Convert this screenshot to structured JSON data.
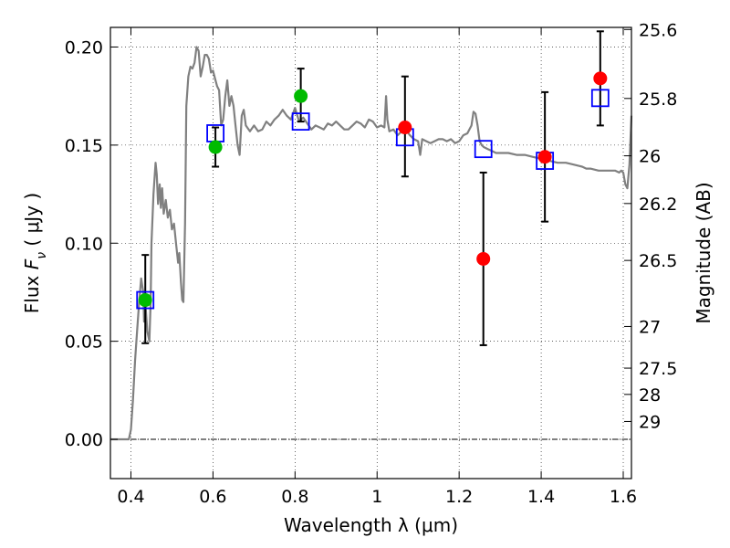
{
  "chart_data": {
    "type": "scatter",
    "xlabel": "Wavelength  λ (μm)",
    "ylabel": "Flux  F_ν  ( μJy )",
    "ylabel_parts": {
      "prefix": "Flux  ",
      "var": "F",
      "sub": "ν",
      "unit": "  ( μJy )"
    },
    "y2label": "Magnitude (AB)",
    "xlim": [
      0.35,
      1.62
    ],
    "ylim": [
      -0.02,
      0.21
    ],
    "grid": true,
    "x_ticks": [
      {
        "value": 0.4,
        "label": "0.4"
      },
      {
        "value": 0.6,
        "label": "0.6"
      },
      {
        "value": 0.8,
        "label": "0.8"
      },
      {
        "value": 1.0,
        "label": "1"
      },
      {
        "value": 1.2,
        "label": "1.2"
      },
      {
        "value": 1.4,
        "label": "1.4"
      },
      {
        "value": 1.6,
        "label": "1.6"
      }
    ],
    "y_ticks": [
      {
        "value": 0.0,
        "label": "0.00"
      },
      {
        "value": 0.05,
        "label": "0.05"
      },
      {
        "value": 0.1,
        "label": "0.10"
      },
      {
        "value": 0.15,
        "label": "0.15"
      },
      {
        "value": 0.2,
        "label": "0.20"
      }
    ],
    "mag_ticks": [
      {
        "mag": 25.6,
        "label": "25.6"
      },
      {
        "mag": 25.8,
        "label": "25.8"
      },
      {
        "mag": 26.0,
        "label": "26"
      },
      {
        "mag": 26.2,
        "label": "26.2"
      },
      {
        "mag": 26.5,
        "label": "26.5"
      },
      {
        "mag": 27.0,
        "label": "27"
      },
      {
        "mag": 27.5,
        "label": "27.5"
      },
      {
        "mag": 28.0,
        "label": "28"
      },
      {
        "mag": 29.0,
        "label": "29"
      }
    ],
    "colors": {
      "detected": "#00bb00",
      "other": "#ff0000",
      "model_box": "#0000ff",
      "spectrum": "#808080",
      "errorbar": "#000000"
    },
    "measurements": [
      {
        "x": 0.435,
        "y": 0.071,
        "yerr_low": 0.049,
        "yerr_high": 0.094,
        "color": "detected"
      },
      {
        "x": 0.606,
        "y": 0.149,
        "yerr_low": 0.139,
        "yerr_high": 0.159,
        "color": "detected"
      },
      {
        "x": 0.814,
        "y": 0.175,
        "yerr_low": 0.162,
        "yerr_high": 0.189,
        "color": "detected"
      },
      {
        "x": 1.068,
        "y": 0.159,
        "yerr_low": 0.134,
        "yerr_high": 0.185,
        "color": "other"
      },
      {
        "x": 1.259,
        "y": 0.092,
        "yerr_low": 0.048,
        "yerr_high": 0.136,
        "color": "other"
      },
      {
        "x": 1.409,
        "y": 0.144,
        "yerr_low": 0.111,
        "yerr_high": 0.177,
        "color": "other"
      },
      {
        "x": 1.544,
        "y": 0.184,
        "yerr_low": 0.16,
        "yerr_high": 0.208,
        "color": "other"
      }
    ],
    "model_photometry": [
      {
        "x": 0.435,
        "y": 0.071
      },
      {
        "x": 0.606,
        "y": 0.156
      },
      {
        "x": 0.814,
        "y": 0.162
      },
      {
        "x": 1.068,
        "y": 0.154
      },
      {
        "x": 1.259,
        "y": 0.148
      },
      {
        "x": 1.409,
        "y": 0.142
      },
      {
        "x": 1.544,
        "y": 0.174
      }
    ],
    "spectrum": [
      [
        0.35,
        0.0
      ],
      [
        0.38,
        0.0
      ],
      [
        0.395,
        0.0
      ],
      [
        0.4,
        0.005
      ],
      [
        0.405,
        0.02
      ],
      [
        0.41,
        0.04
      ],
      [
        0.415,
        0.055
      ],
      [
        0.42,
        0.07
      ],
      [
        0.425,
        0.082
      ],
      [
        0.43,
        0.075
      ],
      [
        0.432,
        0.06
      ],
      [
        0.435,
        0.07
      ],
      [
        0.44,
        0.055
      ],
      [
        0.445,
        0.05
      ],
      [
        0.448,
        0.07
      ],
      [
        0.45,
        0.1
      ],
      [
        0.455,
        0.125
      ],
      [
        0.46,
        0.141
      ],
      [
        0.463,
        0.135
      ],
      [
        0.466,
        0.12
      ],
      [
        0.47,
        0.13
      ],
      [
        0.473,
        0.118
      ],
      [
        0.476,
        0.128
      ],
      [
        0.48,
        0.115
      ],
      [
        0.485,
        0.122
      ],
      [
        0.49,
        0.113
      ],
      [
        0.495,
        0.117
      ],
      [
        0.5,
        0.107
      ],
      [
        0.505,
        0.11
      ],
      [
        0.51,
        0.1
      ],
      [
        0.515,
        0.09
      ],
      [
        0.518,
        0.095
      ],
      [
        0.522,
        0.08
      ],
      [
        0.525,
        0.071
      ],
      [
        0.528,
        0.07
      ],
      [
        0.532,
        0.11
      ],
      [
        0.535,
        0.17
      ],
      [
        0.54,
        0.185
      ],
      [
        0.545,
        0.19
      ],
      [
        0.55,
        0.189
      ],
      [
        0.555,
        0.192
      ],
      [
        0.56,
        0.2
      ],
      [
        0.565,
        0.198
      ],
      [
        0.57,
        0.185
      ],
      [
        0.575,
        0.19
      ],
      [
        0.58,
        0.196
      ],
      [
        0.585,
        0.196
      ],
      [
        0.59,
        0.194
      ],
      [
        0.595,
        0.187
      ],
      [
        0.6,
        0.188
      ],
      [
        0.605,
        0.184
      ],
      [
        0.61,
        0.18
      ],
      [
        0.615,
        0.178
      ],
      [
        0.62,
        0.16
      ],
      [
        0.625,
        0.163
      ],
      [
        0.63,
        0.175
      ],
      [
        0.635,
        0.183
      ],
      [
        0.64,
        0.17
      ],
      [
        0.645,
        0.175
      ],
      [
        0.65,
        0.17
      ],
      [
        0.655,
        0.16
      ],
      [
        0.66,
        0.15
      ],
      [
        0.665,
        0.145
      ],
      [
        0.67,
        0.165
      ],
      [
        0.675,
        0.168
      ],
      [
        0.68,
        0.16
      ],
      [
        0.69,
        0.157
      ],
      [
        0.7,
        0.16
      ],
      [
        0.71,
        0.157
      ],
      [
        0.72,
        0.158
      ],
      [
        0.73,
        0.162
      ],
      [
        0.74,
        0.16
      ],
      [
        0.75,
        0.163
      ],
      [
        0.76,
        0.165
      ],
      [
        0.77,
        0.168
      ],
      [
        0.78,
        0.165
      ],
      [
        0.79,
        0.163
      ],
      [
        0.8,
        0.169
      ],
      [
        0.81,
        0.162
      ],
      [
        0.82,
        0.164
      ],
      [
        0.83,
        0.161
      ],
      [
        0.84,
        0.158
      ],
      [
        0.85,
        0.16
      ],
      [
        0.86,
        0.159
      ],
      [
        0.87,
        0.158
      ],
      [
        0.88,
        0.161
      ],
      [
        0.89,
        0.16
      ],
      [
        0.9,
        0.162
      ],
      [
        0.91,
        0.16
      ],
      [
        0.92,
        0.158
      ],
      [
        0.93,
        0.158
      ],
      [
        0.94,
        0.16
      ],
      [
        0.95,
        0.162
      ],
      [
        0.96,
        0.161
      ],
      [
        0.97,
        0.159
      ],
      [
        0.98,
        0.163
      ],
      [
        0.99,
        0.162
      ],
      [
        1.0,
        0.159
      ],
      [
        1.01,
        0.16
      ],
      [
        1.018,
        0.159
      ],
      [
        1.022,
        0.175
      ],
      [
        1.025,
        0.163
      ],
      [
        1.03,
        0.157
      ],
      [
        1.04,
        0.158
      ],
      [
        1.05,
        0.155
      ],
      [
        1.06,
        0.157
      ],
      [
        1.07,
        0.158
      ],
      [
        1.08,
        0.155
      ],
      [
        1.09,
        0.153
      ],
      [
        1.1,
        0.152
      ],
      [
        1.105,
        0.145
      ],
      [
        1.11,
        0.153
      ],
      [
        1.12,
        0.152
      ],
      [
        1.13,
        0.151
      ],
      [
        1.14,
        0.152
      ],
      [
        1.15,
        0.153
      ],
      [
        1.16,
        0.153
      ],
      [
        1.17,
        0.152
      ],
      [
        1.18,
        0.153
      ],
      [
        1.19,
        0.151
      ],
      [
        1.2,
        0.152
      ],
      [
        1.21,
        0.155
      ],
      [
        1.22,
        0.156
      ],
      [
        1.225,
        0.158
      ],
      [
        1.23,
        0.16
      ],
      [
        1.235,
        0.167
      ],
      [
        1.24,
        0.166
      ],
      [
        1.245,
        0.16
      ],
      [
        1.25,
        0.152
      ],
      [
        1.255,
        0.15
      ],
      [
        1.26,
        0.149
      ],
      [
        1.27,
        0.148
      ],
      [
        1.28,
        0.147
      ],
      [
        1.29,
        0.146
      ],
      [
        1.3,
        0.146
      ],
      [
        1.32,
        0.146
      ],
      [
        1.34,
        0.145
      ],
      [
        1.36,
        0.145
      ],
      [
        1.38,
        0.144
      ],
      [
        1.4,
        0.143
      ],
      [
        1.42,
        0.142
      ],
      [
        1.44,
        0.141
      ],
      [
        1.46,
        0.141
      ],
      [
        1.48,
        0.14
      ],
      [
        1.5,
        0.139
      ],
      [
        1.51,
        0.138
      ],
      [
        1.52,
        0.138
      ],
      [
        1.54,
        0.137
      ],
      [
        1.56,
        0.137
      ],
      [
        1.58,
        0.137
      ],
      [
        1.59,
        0.136
      ],
      [
        1.595,
        0.137
      ],
      [
        1.6,
        0.136
      ],
      [
        1.605,
        0.13
      ],
      [
        1.61,
        0.128
      ],
      [
        1.615,
        0.14
      ],
      [
        1.62,
        0.165
      ]
    ]
  }
}
